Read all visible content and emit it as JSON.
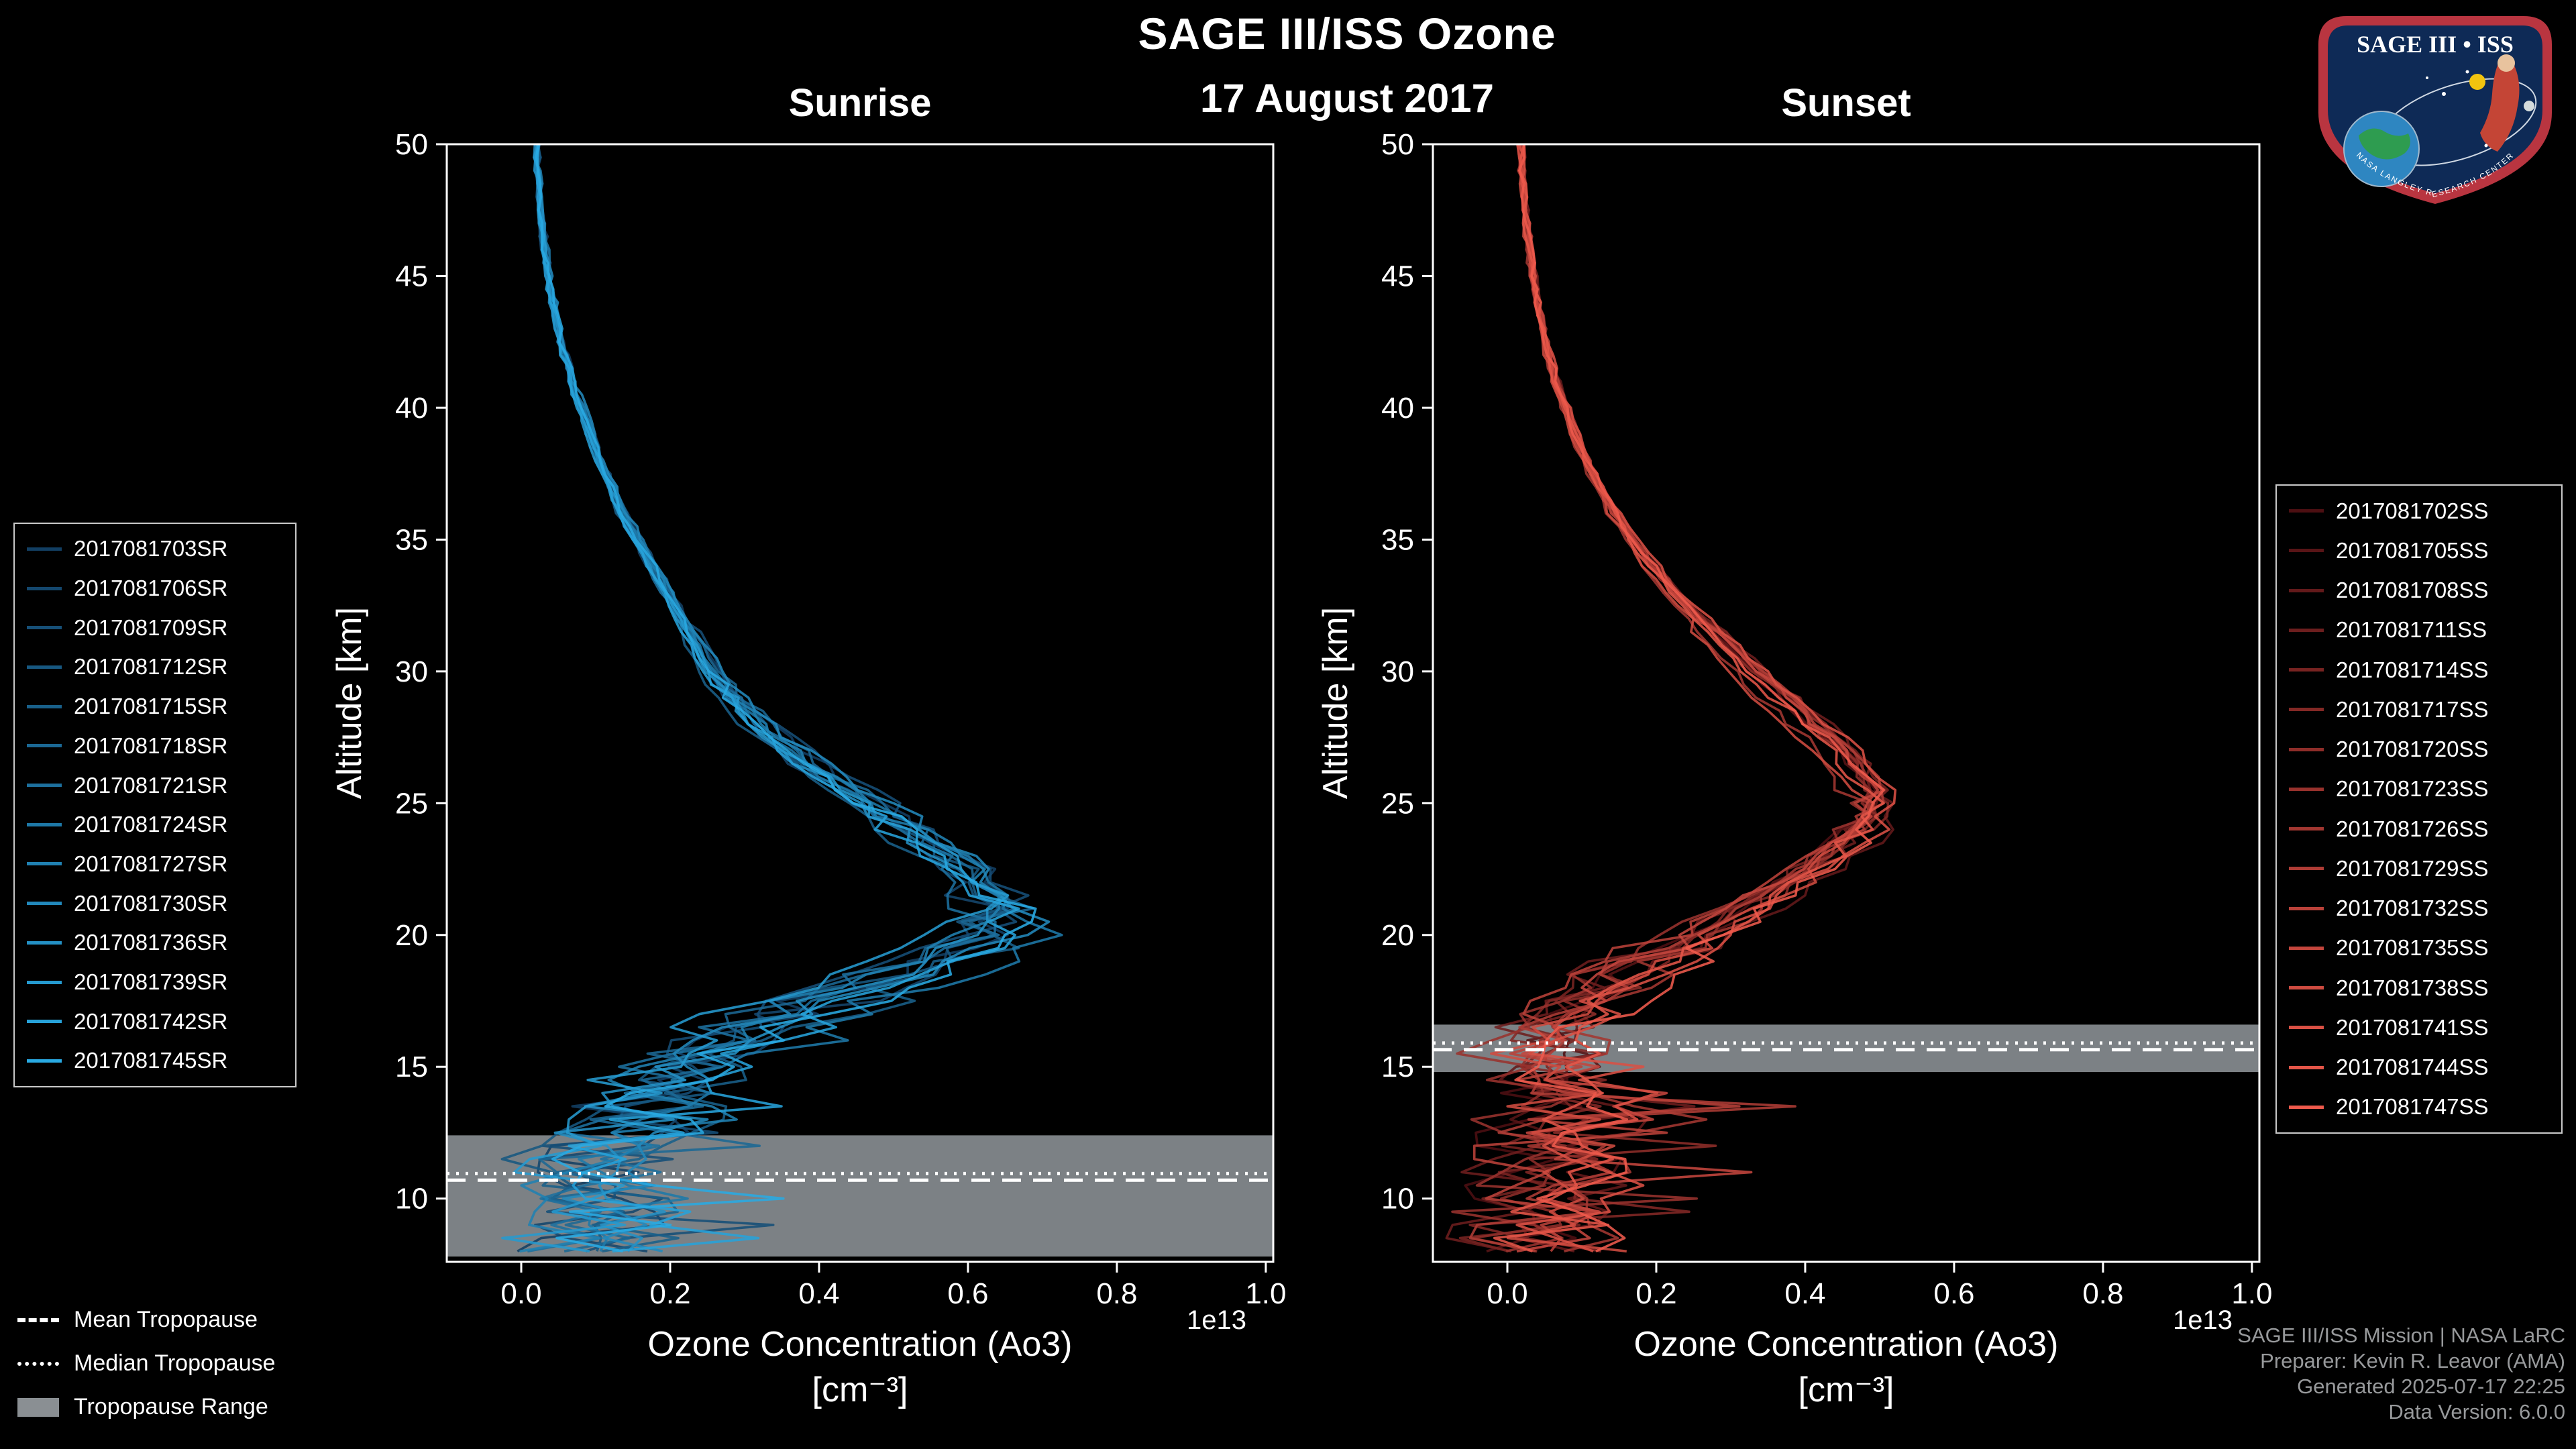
{
  "header": {
    "title": "SAGE III/ISS Ozone",
    "date": "17 August 2017"
  },
  "tropopause_legend": {
    "mean": "Mean Tropopause",
    "median": "Median Tropopause",
    "range": "Tropopause Range"
  },
  "credits": {
    "lines": [
      "SAGE III/ISS Mission | NASA LaRC",
      "Preparer: Kevin R. Leavor (AMA)",
      "Generated 2025-07-17 22:25",
      "Data Version: 6.0.0"
    ]
  },
  "logo": {
    "title": "SAGE III • ISS",
    "rim_text": "NASA LANGLEY RESEARCH CENTER"
  },
  "colors": {
    "background": "#000000",
    "axis": "#ffffff",
    "tropopause_band": "#8a8f93",
    "sunrise_start": "#123f63",
    "sunrise_end": "#29aae3",
    "sunset_start": "#4d0f12",
    "sunset_end": "#ef5a4c"
  },
  "chart_data": [
    {
      "type": "line",
      "title": "Sunrise",
      "xlabel": "Ozone Concentration (Ao3)",
      "xlabel_units": "[cm⁻³]",
      "ylabel": "Altitude [km]",
      "x_offset_label": "1e13",
      "xlim": [
        -0.1,
        1.01
      ],
      "ylim": [
        7.6,
        50
      ],
      "xticks": [
        0.0,
        0.2,
        0.4,
        0.6,
        0.8,
        1.0
      ],
      "yticks": [
        10,
        15,
        20,
        25,
        30,
        35,
        40,
        45,
        50
      ],
      "grid": false,
      "legend_position": "outside-left",
      "series_labels": [
        "2017081703SR",
        "2017081706SR",
        "2017081709SR",
        "2017081712SR",
        "2017081715SR",
        "2017081718SR",
        "2017081721SR",
        "2017081724SR",
        "2017081727SR",
        "2017081730SR",
        "2017081736SR",
        "2017081739SR",
        "2017081742SR",
        "2017081745SR"
      ],
      "color_start": "#123f63",
      "color_end": "#29aae3",
      "base_profile": {
        "altitudes": [
          50,
          49,
          48,
          47,
          46,
          45,
          44,
          43,
          42,
          41,
          40,
          39,
          38,
          37,
          36,
          35,
          34,
          33,
          32,
          31,
          30,
          29,
          28,
          27,
          26,
          25,
          24,
          23,
          22,
          21,
          20,
          19,
          18,
          17,
          16,
          15,
          14,
          13,
          12,
          11,
          10,
          9,
          8
        ],
        "values": [
          0.02,
          0.022,
          0.025,
          0.028,
          0.032,
          0.036,
          0.042,
          0.05,
          0.058,
          0.068,
          0.08,
          0.092,
          0.105,
          0.12,
          0.135,
          0.155,
          0.175,
          0.195,
          0.215,
          0.235,
          0.255,
          0.285,
          0.32,
          0.36,
          0.41,
          0.465,
          0.52,
          0.57,
          0.61,
          0.64,
          0.63,
          0.56,
          0.46,
          0.36,
          0.28,
          0.22,
          0.18,
          0.15,
          0.12,
          0.1,
          0.13,
          0.11,
          0.09
        ]
      },
      "noise_levels": [
        [
          30,
          0.005
        ],
        [
          25,
          0.013
        ],
        [
          22,
          0.026
        ],
        [
          18,
          0.048
        ],
        [
          14,
          0.07
        ],
        [
          0,
          0.095
        ]
      ],
      "spike_chance": 0.1,
      "spike_size": 0.18,
      "tropopause": {
        "mean": 10.7,
        "median": 10.95,
        "range": [
          7.8,
          12.4
        ]
      }
    },
    {
      "type": "line",
      "title": "Sunset",
      "xlabel": "Ozone Concentration (Ao3)",
      "xlabel_units": "[cm⁻³]",
      "ylabel": "Altitude [km]",
      "x_offset_label": "1e13",
      "xlim": [
        -0.1,
        1.01
      ],
      "ylim": [
        7.6,
        50
      ],
      "xticks": [
        0.0,
        0.2,
        0.4,
        0.6,
        0.8,
        1.0
      ],
      "yticks": [
        10,
        15,
        20,
        25,
        30,
        35,
        40,
        45,
        50
      ],
      "grid": false,
      "legend_position": "outside-right",
      "series_labels": [
        "2017081702SS",
        "2017081705SS",
        "2017081708SS",
        "2017081711SS",
        "2017081714SS",
        "2017081717SS",
        "2017081720SS",
        "2017081723SS",
        "2017081726SS",
        "2017081729SS",
        "2017081732SS",
        "2017081735SS",
        "2017081738SS",
        "2017081741SS",
        "2017081744SS",
        "2017081747SS"
      ],
      "color_start": "#4d0f12",
      "color_end": "#ef5a4c",
      "base_profile": {
        "altitudes": [
          50,
          49,
          48,
          47,
          46,
          45,
          44,
          43,
          42,
          41,
          40,
          39,
          38,
          37,
          36,
          35,
          34,
          33,
          32,
          31,
          30,
          29,
          28,
          27,
          26,
          25,
          24,
          23,
          22,
          21,
          20,
          19,
          18,
          17,
          16,
          15,
          14,
          13,
          12,
          11,
          10,
          9,
          8
        ],
        "values": [
          0.018,
          0.02,
          0.023,
          0.026,
          0.03,
          0.035,
          0.041,
          0.048,
          0.056,
          0.066,
          0.078,
          0.092,
          0.108,
          0.125,
          0.145,
          0.168,
          0.195,
          0.225,
          0.26,
          0.295,
          0.33,
          0.37,
          0.41,
          0.45,
          0.48,
          0.5,
          0.48,
          0.44,
          0.39,
          0.33,
          0.27,
          0.2,
          0.14,
          0.1,
          0.07,
          0.06,
          0.08,
          0.095,
          0.06,
          0.075,
          0.055,
          0.06,
          0.045
        ]
      },
      "noise_levels": [
        [
          30,
          0.005
        ],
        [
          26,
          0.011
        ],
        [
          20,
          0.022
        ],
        [
          16,
          0.05
        ],
        [
          0,
          0.09
        ]
      ],
      "spike_chance": 0.13,
      "spike_size": 0.25,
      "tropopause": {
        "mean": 15.65,
        "median": 15.9,
        "range": [
          14.8,
          16.6
        ]
      }
    }
  ]
}
